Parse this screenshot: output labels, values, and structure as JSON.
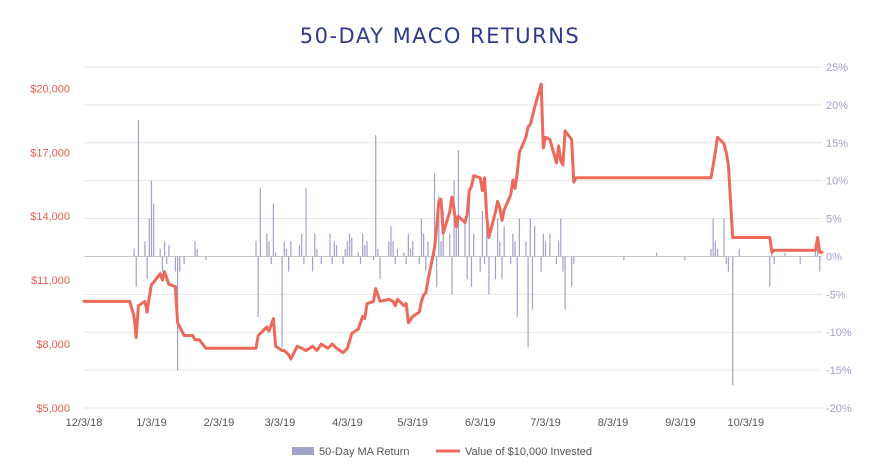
{
  "chart_data": {
    "type": "bar+line",
    "title": "50-DAY MACO RETURNS",
    "x_axis": {
      "type": "date",
      "ticks": [
        "12/3/18",
        "1/3/19",
        "2/3/19",
        "3/3/19",
        "4/3/19",
        "5/3/19",
        "6/3/19",
        "7/3/19",
        "8/3/19",
        "9/3/19",
        "10/3/19"
      ],
      "range": [
        "2018-12-03",
        "2019-11-07"
      ]
    },
    "y_left": {
      "ticks": [
        "$5,000",
        "$8,000",
        "$11,000",
        "$14,000",
        "$17,000",
        "$20,000"
      ],
      "range": [
        5000,
        21000
      ]
    },
    "y_right": {
      "ticks": [
        "-20%",
        "-15%",
        "-10%",
        "-5%",
        "0%",
        "5%",
        "10%",
        "15%",
        "20%",
        "25%"
      ],
      "range": [
        -0.2,
        0.25
      ]
    },
    "grid": true,
    "legend_position": "bottom",
    "series": [
      {
        "name": "50-Day MA Return",
        "type": "bar",
        "axis": "right",
        "color": "#9FA2CC",
        "points": [
          [
            "2018-12-26",
            0.01
          ],
          [
            "2018-12-27",
            -0.04
          ],
          [
            "2018-12-28",
            0.18
          ],
          [
            "2018-12-31",
            0.02
          ],
          [
            "2019-01-01",
            -0.03
          ],
          [
            "2019-01-02",
            0.05
          ],
          [
            "2019-01-03",
            0.1
          ],
          [
            "2019-01-04",
            0.07
          ],
          [
            "2019-01-07",
            0.01
          ],
          [
            "2019-01-08",
            -0.02
          ],
          [
            "2019-01-09",
            0.02
          ],
          [
            "2019-01-10",
            -0.01
          ],
          [
            "2019-01-11",
            0.015
          ],
          [
            "2019-01-14",
            -0.02
          ],
          [
            "2019-01-15",
            -0.15
          ],
          [
            "2019-01-16",
            -0.02
          ],
          [
            "2019-01-18",
            -0.01
          ],
          [
            "2019-01-23",
            0.02
          ],
          [
            "2019-01-24",
            0.01
          ],
          [
            "2019-01-28",
            -0.005
          ],
          [
            "2019-02-20",
            0.02
          ],
          [
            "2019-02-21",
            -0.08
          ],
          [
            "2019-02-22",
            0.09
          ],
          [
            "2019-02-25",
            0.03
          ],
          [
            "2019-02-26",
            0.02
          ],
          [
            "2019-02-27",
            -0.01
          ],
          [
            "2019-02-28",
            0.07
          ],
          [
            "2019-03-01",
            0.005
          ],
          [
            "2019-03-04",
            -0.12
          ],
          [
            "2019-03-05",
            0.02
          ],
          [
            "2019-03-06",
            0.01
          ],
          [
            "2019-03-07",
            -0.02
          ],
          [
            "2019-03-08",
            0.02
          ],
          [
            "2019-03-12",
            0.015
          ],
          [
            "2019-03-13",
            0.03
          ],
          [
            "2019-03-14",
            -0.01
          ],
          [
            "2019-03-15",
            0.09
          ],
          [
            "2019-03-18",
            -0.02
          ],
          [
            "2019-03-19",
            0.03
          ],
          [
            "2019-03-20",
            0.01
          ],
          [
            "2019-03-22",
            -0.01
          ],
          [
            "2019-03-26",
            0.03
          ],
          [
            "2019-03-27",
            -0.01
          ],
          [
            "2019-03-28",
            0.02
          ],
          [
            "2019-03-29",
            0.015
          ],
          [
            "2019-04-01",
            -0.01
          ],
          [
            "2019-04-02",
            0.01
          ],
          [
            "2019-04-03",
            0.02
          ],
          [
            "2019-04-04",
            0.03
          ],
          [
            "2019-04-05",
            0.025
          ],
          [
            "2019-04-08",
            0.005
          ],
          [
            "2019-04-09",
            -0.01
          ],
          [
            "2019-04-10",
            0.03
          ],
          [
            "2019-04-11",
            0.015
          ],
          [
            "2019-04-12",
            0.02
          ],
          [
            "2019-04-15",
            -0.005
          ],
          [
            "2019-04-16",
            0.16
          ],
          [
            "2019-04-17",
            0.01
          ],
          [
            "2019-04-18",
            -0.03
          ],
          [
            "2019-04-22",
            0.02
          ],
          [
            "2019-04-23",
            0.04
          ],
          [
            "2019-04-24",
            0.02
          ],
          [
            "2019-04-25",
            -0.01
          ],
          [
            "2019-04-26",
            0.01
          ],
          [
            "2019-04-29",
            0.005
          ],
          [
            "2019-04-30",
            -0.01
          ],
          [
            "2019-05-01",
            0.03
          ],
          [
            "2019-05-02",
            0.01
          ],
          [
            "2019-05-03",
            0.02
          ],
          [
            "2019-05-06",
            -0.01
          ],
          [
            "2019-05-07",
            0.05
          ],
          [
            "2019-05-08",
            0.03
          ],
          [
            "2019-05-09",
            -0.02
          ],
          [
            "2019-05-10",
            0.02
          ],
          [
            "2019-05-13",
            0.11
          ],
          [
            "2019-05-14",
            -0.04
          ],
          [
            "2019-05-15",
            0.08
          ],
          [
            "2019-05-16",
            0.02
          ],
          [
            "2019-05-17",
            0.06
          ],
          [
            "2019-05-20",
            0.03
          ],
          [
            "2019-05-21",
            -0.05
          ],
          [
            "2019-05-22",
            0.1
          ],
          [
            "2019-05-23",
            0.04
          ],
          [
            "2019-05-24",
            0.14
          ],
          [
            "2019-05-27",
            0.05
          ],
          [
            "2019-05-28",
            -0.03
          ],
          [
            "2019-05-29",
            0.09
          ],
          [
            "2019-05-30",
            -0.04
          ],
          [
            "2019-05-31",
            0.03
          ],
          [
            "2019-06-03",
            -0.02
          ],
          [
            "2019-06-04",
            0.06
          ],
          [
            "2019-06-05",
            -0.01
          ],
          [
            "2019-06-06",
            0.04
          ],
          [
            "2019-06-07",
            -0.05
          ],
          [
            "2019-06-10",
            -0.03
          ],
          [
            "2019-06-11",
            0.05
          ],
          [
            "2019-06-12",
            0.02
          ],
          [
            "2019-06-13",
            -0.03
          ],
          [
            "2019-06-14",
            0.04
          ],
          [
            "2019-06-17",
            -0.01
          ],
          [
            "2019-06-18",
            0.03
          ],
          [
            "2019-06-19",
            0.02
          ],
          [
            "2019-06-20",
            -0.08
          ],
          [
            "2019-06-21",
            0.05
          ],
          [
            "2019-06-24",
            0.02
          ],
          [
            "2019-06-25",
            -0.12
          ],
          [
            "2019-06-26",
            0.05
          ],
          [
            "2019-06-27",
            -0.07
          ],
          [
            "2019-06-28",
            0.04
          ],
          [
            "2019-07-01",
            -0.02
          ],
          [
            "2019-07-02",
            0.03
          ],
          [
            "2019-07-03",
            0.02
          ],
          [
            "2019-07-05",
            0.03
          ],
          [
            "2019-07-08",
            -0.01
          ],
          [
            "2019-07-09",
            0.02
          ],
          [
            "2019-07-10",
            0.05
          ],
          [
            "2019-07-11",
            -0.02
          ],
          [
            "2019-07-12",
            -0.07
          ],
          [
            "2019-07-15",
            -0.04
          ],
          [
            "2019-07-16",
            -0.01
          ],
          [
            "2019-08-08",
            -0.005
          ],
          [
            "2019-08-23",
            0.005
          ],
          [
            "2019-09-05",
            -0.005
          ],
          [
            "2019-09-17",
            0.01
          ],
          [
            "2019-09-18",
            0.05
          ],
          [
            "2019-09-19",
            0.02
          ],
          [
            "2019-09-20",
            0.01
          ],
          [
            "2019-09-23",
            0.05
          ],
          [
            "2019-09-24",
            -0.01
          ],
          [
            "2019-09-25",
            -0.02
          ],
          [
            "2019-09-27",
            -0.17
          ],
          [
            "2019-09-30",
            0.01
          ],
          [
            "2019-10-14",
            -0.04
          ],
          [
            "2019-10-15",
            0.01
          ],
          [
            "2019-10-16",
            -0.01
          ],
          [
            "2019-10-21",
            0.005
          ],
          [
            "2019-10-28",
            -0.01
          ],
          [
            "2019-11-04",
            0.01
          ],
          [
            "2019-11-05",
            0.02
          ],
          [
            "2019-11-06",
            -0.02
          ]
        ]
      },
      {
        "name": "Value of $10,000 Invested",
        "type": "line",
        "axis": "left",
        "color": "#ED6A5A",
        "points": [
          [
            "2018-12-03",
            10000
          ],
          [
            "2018-12-24",
            10000
          ],
          [
            "2018-12-26",
            9300
          ],
          [
            "2018-12-27",
            8300
          ],
          [
            "2018-12-28",
            9800
          ],
          [
            "2018-12-31",
            10000
          ],
          [
            "2019-01-01",
            9500
          ],
          [
            "2019-01-02",
            10200
          ],
          [
            "2019-01-03",
            10800
          ],
          [
            "2019-01-04",
            10900
          ],
          [
            "2019-01-07",
            11300
          ],
          [
            "2019-01-08",
            11000
          ],
          [
            "2019-01-09",
            11400
          ],
          [
            "2019-01-10",
            11100
          ],
          [
            "2019-01-11",
            10800
          ],
          [
            "2019-01-14",
            10700
          ],
          [
            "2019-01-15",
            9000
          ],
          [
            "2019-01-16",
            8800
          ],
          [
            "2019-01-17",
            8600
          ],
          [
            "2019-01-18",
            8400
          ],
          [
            "2019-01-22",
            8400
          ],
          [
            "2019-01-23",
            8200
          ],
          [
            "2019-01-25",
            8200
          ],
          [
            "2019-01-28",
            7800
          ],
          [
            "2019-02-20",
            7800
          ],
          [
            "2019-02-21",
            8400
          ],
          [
            "2019-02-22",
            8500
          ],
          [
            "2019-02-25",
            8800
          ],
          [
            "2019-02-26",
            8600
          ],
          [
            "2019-02-27",
            8900
          ],
          [
            "2019-02-28",
            9200
          ],
          [
            "2019-03-01",
            7900
          ],
          [
            "2019-03-04",
            7700
          ],
          [
            "2019-03-05",
            7700
          ],
          [
            "2019-03-07",
            7500
          ],
          [
            "2019-03-08",
            7300
          ],
          [
            "2019-03-11",
            7900
          ],
          [
            "2019-03-13",
            7800
          ],
          [
            "2019-03-15",
            7700
          ],
          [
            "2019-03-18",
            7900
          ],
          [
            "2019-03-20",
            7700
          ],
          [
            "2019-03-22",
            8000
          ],
          [
            "2019-03-25",
            7800
          ],
          [
            "2019-03-27",
            8000
          ],
          [
            "2019-03-29",
            7800
          ],
          [
            "2019-04-01",
            7600
          ],
          [
            "2019-04-03",
            7800
          ],
          [
            "2019-04-05",
            8500
          ],
          [
            "2019-04-08",
            8700
          ],
          [
            "2019-04-10",
            9300
          ],
          [
            "2019-04-11",
            9200
          ],
          [
            "2019-04-12",
            9900
          ],
          [
            "2019-04-15",
            10000
          ],
          [
            "2019-04-16",
            10600
          ],
          [
            "2019-04-17",
            10300
          ],
          [
            "2019-04-18",
            10000
          ],
          [
            "2019-04-22",
            10100
          ],
          [
            "2019-04-24",
            10000
          ],
          [
            "2019-04-25",
            9800
          ],
          [
            "2019-04-26",
            10100
          ],
          [
            "2019-04-29",
            9800
          ],
          [
            "2019-04-30",
            9900
          ],
          [
            "2019-05-01",
            9000
          ],
          [
            "2019-05-03",
            9300
          ],
          [
            "2019-05-06",
            9500
          ],
          [
            "2019-05-07",
            10000
          ],
          [
            "2019-05-08",
            10300
          ],
          [
            "2019-05-09",
            10400
          ],
          [
            "2019-05-10",
            11000
          ],
          [
            "2019-05-13",
            12500
          ],
          [
            "2019-05-14",
            13500
          ],
          [
            "2019-05-15",
            14700
          ],
          [
            "2019-05-16",
            14800
          ],
          [
            "2019-05-17",
            13200
          ],
          [
            "2019-05-20",
            14200
          ],
          [
            "2019-05-21",
            14900
          ],
          [
            "2019-05-22",
            14300
          ],
          [
            "2019-05-23",
            13500
          ],
          [
            "2019-05-24",
            14000
          ],
          [
            "2019-05-27",
            13700
          ],
          [
            "2019-05-28",
            14100
          ],
          [
            "2019-05-29",
            15200
          ],
          [
            "2019-05-30",
            15400
          ],
          [
            "2019-05-31",
            15900
          ],
          [
            "2019-06-03",
            15800
          ],
          [
            "2019-06-04",
            15200
          ],
          [
            "2019-06-05",
            15800
          ],
          [
            "2019-06-06",
            14000
          ],
          [
            "2019-06-07",
            13000
          ],
          [
            "2019-06-10",
            14200
          ],
          [
            "2019-06-11",
            14700
          ],
          [
            "2019-06-12",
            14400
          ],
          [
            "2019-06-13",
            13800
          ],
          [
            "2019-06-14",
            14300
          ],
          [
            "2019-06-17",
            15000
          ],
          [
            "2019-06-18",
            15700
          ],
          [
            "2019-06-19",
            15300
          ],
          [
            "2019-06-20",
            16000
          ],
          [
            "2019-06-21",
            17000
          ],
          [
            "2019-06-24",
            17700
          ],
          [
            "2019-06-25",
            18200
          ],
          [
            "2019-06-26",
            18300
          ],
          [
            "2019-06-27",
            18700
          ],
          [
            "2019-06-28",
            19100
          ],
          [
            "2019-07-01",
            20200
          ],
          [
            "2019-07-02",
            17200
          ],
          [
            "2019-07-03",
            17700
          ],
          [
            "2019-07-05",
            17600
          ],
          [
            "2019-07-08",
            16500
          ],
          [
            "2019-07-09",
            17300
          ],
          [
            "2019-07-10",
            16600
          ],
          [
            "2019-07-11",
            16400
          ],
          [
            "2019-07-12",
            18000
          ],
          [
            "2019-07-15",
            17600
          ],
          [
            "2019-07-16",
            15600
          ],
          [
            "2019-07-17",
            15800
          ],
          [
            "2019-09-17",
            15800
          ],
          [
            "2019-09-18",
            16400
          ],
          [
            "2019-09-19",
            17000
          ],
          [
            "2019-09-20",
            17700
          ],
          [
            "2019-09-23",
            17400
          ],
          [
            "2019-09-24",
            17000
          ],
          [
            "2019-09-25",
            16400
          ],
          [
            "2019-09-27",
            13000
          ],
          [
            "2019-10-14",
            13000
          ],
          [
            "2019-10-15",
            12300
          ],
          [
            "2019-10-16",
            12400
          ],
          [
            "2019-11-04",
            12400
          ],
          [
            "2019-11-05",
            13000
          ],
          [
            "2019-11-06",
            12300
          ],
          [
            "2019-11-07",
            12300
          ]
        ]
      }
    ]
  }
}
